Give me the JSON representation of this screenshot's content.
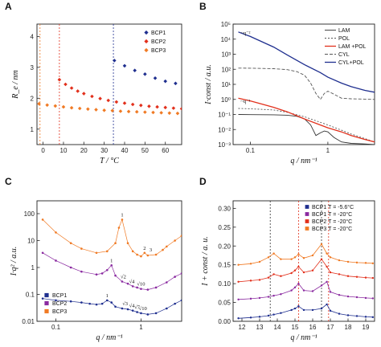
{
  "colors": {
    "bcp1": "#1f2f8f",
    "bcp2": "#e2301c",
    "bcp3": "#f07a24",
    "bcp2_purple": "#8a2aa0",
    "axis": "#222222"
  },
  "panels": [
    {
      "letter": "A",
      "ylabel": "R_e / nm",
      "xlabel": "T / °C",
      "xticks": [
        "0",
        "10",
        "20",
        "30",
        "40",
        "50",
        "60"
      ],
      "yticks": [
        "1",
        "2",
        "3",
        "4"
      ],
      "legend": [
        "BCP1",
        "BCP2",
        "BCP3"
      ],
      "markers": [
        "diamond",
        "diamond",
        "diamond"
      ]
    },
    {
      "letter": "B",
      "ylabel": "I·const / a.u.",
      "xlabel": "q / nm⁻¹",
      "xticks": [
        "0.1",
        "1"
      ],
      "yticks": [
        "10⁻³",
        "10⁻²",
        "10⁻¹",
        "10⁰",
        "10¹",
        "10²",
        "10³",
        "10⁴",
        "10⁵"
      ],
      "legend": [
        "LAM",
        "POL",
        "LAM +POL",
        "CYL",
        "CYL+POL"
      ],
      "annotations": [
        "~q⁻²",
        "~q⁻¹"
      ]
    },
    {
      "letter": "C",
      "ylabel": "I·q² / a.u.",
      "xlabel": "q / nm⁻¹",
      "xticks": [
        "0.1",
        "1"
      ],
      "yticks": [
        "0.01",
        "0.1",
        "1",
        "10",
        "100"
      ],
      "legend": [
        "BCP1",
        "BCP2",
        "BCP3"
      ],
      "peak_labels_bcp3": [
        "1",
        "2",
        "3"
      ],
      "peak_labels_bcp2": [
        "1",
        "√2",
        "√4",
        "√10"
      ],
      "peak_labels_bcp1": [
        "1",
        "√3",
        "√4",
        "√7",
        "√10"
      ]
    },
    {
      "letter": "D",
      "ylabel": "I + const / a. u.",
      "xlabel": "q / nm⁻¹",
      "xticks": [
        "12",
        "13",
        "14",
        "15",
        "16",
        "17",
        "18",
        "19"
      ],
      "yticks": [
        "0.00",
        "0.05",
        "0.10",
        "0.15",
        "0.20",
        "0.25",
        "0.30"
      ],
      "legend": [
        "BCP1 T = -5.6°C",
        "BCP1 T = -20°C",
        "BCP2 T = -20°C",
        "BCP3 T = -20°C"
      ]
    }
  ],
  "chart_data": [
    {
      "type": "scatter",
      "xlim": [
        -3,
        68
      ],
      "ylim": [
        0.5,
        4.4
      ],
      "series": [
        {
          "name": "BCP1",
          "x": [
            35,
            40,
            45,
            50,
            55,
            60,
            65
          ],
          "y": [
            3.22,
            3.05,
            2.9,
            2.78,
            2.65,
            2.55,
            2.48
          ]
        },
        {
          "name": "BCP2",
          "x": [
            8,
            11,
            14,
            17,
            20,
            24,
            28,
            32,
            36,
            40,
            44,
            48,
            52,
            56,
            60,
            64,
            68
          ],
          "y": [
            2.6,
            2.45,
            2.33,
            2.23,
            2.15,
            2.06,
            1.99,
            1.93,
            1.88,
            1.84,
            1.8,
            1.77,
            1.74,
            1.72,
            1.7,
            1.68,
            1.66
          ]
        },
        {
          "name": "BCP3",
          "x": [
            -2,
            2,
            6,
            10,
            14,
            18,
            22,
            26,
            30,
            34,
            38,
            42,
            46,
            50,
            54,
            58,
            62,
            66
          ],
          "y": [
            1.82,
            1.78,
            1.75,
            1.72,
            1.69,
            1.67,
            1.65,
            1.63,
            1.61,
            1.6,
            1.58,
            1.57,
            1.56,
            1.55,
            1.54,
            1.53,
            1.52,
            1.51
          ]
        }
      ],
      "vlines": [
        -1.5,
        8,
        34.5
      ]
    },
    {
      "type": "line",
      "xscale": "log",
      "yscale": "log",
      "xlim": [
        0.06,
        4
      ],
      "ylim": [
        0.001,
        100000
      ],
      "series": [
        {
          "name": "LAM",
          "x": [
            0.07,
            0.1,
            0.2,
            0.3,
            0.4,
            0.5,
            0.6,
            0.7,
            0.8,
            0.9,
            1.0,
            1.2,
            1.5,
            2.0,
            3.0,
            4.0
          ],
          "y": [
            0.1,
            0.098,
            0.095,
            0.09,
            0.075,
            0.05,
            0.02,
            0.004,
            0.006,
            0.008,
            0.007,
            0.003,
            0.0015,
            0.0012,
            0.0011,
            0.001
          ]
        },
        {
          "name": "POL",
          "x": [
            0.07,
            0.1,
            0.2,
            0.3,
            0.5,
            0.8,
            1.0,
            1.5,
            2.0,
            3.0,
            4.0
          ],
          "y": [
            0.25,
            0.24,
            0.2,
            0.14,
            0.07,
            0.03,
            0.02,
            0.009,
            0.005,
            0.0025,
            0.0015
          ]
        },
        {
          "name": "LAM +POL",
          "x": [
            0.07,
            0.1,
            0.2,
            0.3,
            0.5,
            0.8,
            1.0,
            1.5,
            2.0,
            3.0,
            4.0
          ],
          "y": [
            1.2,
            0.8,
            0.3,
            0.15,
            0.05,
            0.02,
            0.013,
            0.007,
            0.004,
            0.0022,
            0.0015
          ]
        },
        {
          "name": "CYL",
          "x": [
            0.07,
            0.1,
            0.2,
            0.3,
            0.4,
            0.5,
            0.6,
            0.7,
            0.8,
            0.9,
            1.0,
            1.2,
            1.5,
            2.0,
            3.0,
            4.0
          ],
          "y": [
            120,
            118,
            110,
            95,
            70,
            40,
            12,
            2.5,
            1.0,
            2.5,
            3.5,
            2.2,
            1.2,
            1.1,
            1.05,
            1.0
          ]
        },
        {
          "name": "CYL+POL",
          "x": [
            0.07,
            0.1,
            0.2,
            0.3,
            0.5,
            0.8,
            1.0,
            1.5,
            2.0,
            3.0,
            4.0
          ],
          "y": [
            30000,
            15000,
            3000,
            900,
            200,
            60,
            30,
            12,
            7,
            4,
            3
          ]
        }
      ]
    },
    {
      "type": "scatter",
      "xscale": "log",
      "yscale": "log",
      "xlim": [
        0.06,
        3
      ],
      "ylim": [
        0.01,
        300
      ],
      "series": [
        {
          "name": "BCP1",
          "x": [
            0.07,
            0.1,
            0.15,
            0.2,
            0.25,
            0.3,
            0.35,
            0.4,
            0.45,
            0.5,
            0.6,
            0.7,
            0.8,
            0.9,
            1.0,
            1.2,
            1.5,
            2.0,
            2.5,
            3.0
          ],
          "y": [
            0.07,
            0.06,
            0.055,
            0.05,
            0.045,
            0.042,
            0.045,
            0.06,
            0.05,
            0.035,
            0.03,
            0.028,
            0.025,
            0.022,
            0.02,
            0.018,
            0.02,
            0.03,
            0.045,
            0.06
          ]
        },
        {
          "name": "BCP2",
          "x": [
            0.07,
            0.1,
            0.15,
            0.2,
            0.3,
            0.35,
            0.4,
            0.45,
            0.5,
            0.6,
            0.7,
            0.8,
            0.9,
            1.0,
            1.2,
            1.5,
            2.0,
            2.5,
            3.0
          ],
          "y": [
            3.5,
            1.8,
            1.0,
            0.7,
            0.55,
            0.6,
            0.8,
            1.2,
            0.5,
            0.3,
            0.25,
            0.2,
            0.18,
            0.16,
            0.15,
            0.18,
            0.28,
            0.45,
            0.6
          ]
        },
        {
          "name": "BCP3",
          "x": [
            0.07,
            0.1,
            0.15,
            0.2,
            0.3,
            0.4,
            0.5,
            0.55,
            0.6,
            0.7,
            0.8,
            0.9,
            1.0,
            1.1,
            1.2,
            1.5,
            1.8,
            2.0,
            2.5,
            3.0
          ],
          "y": [
            60,
            20,
            8,
            5,
            3.5,
            4,
            8,
            30,
            60,
            8,
            4,
            3,
            2.6,
            3.5,
            2.8,
            3.0,
            4.5,
            6,
            10,
            15
          ]
        }
      ]
    },
    {
      "type": "scatter",
      "xlim": [
        11.5,
        19.5
      ],
      "ylim": [
        0.0,
        0.32
      ],
      "series": [
        {
          "name": "BCP1 T = -5.6°C",
          "x": [
            11.8,
            12.5,
            13.0,
            13.5,
            13.8,
            14.2,
            14.8,
            15.0,
            15.2,
            15.5,
            16.0,
            16.5,
            16.8,
            17.0,
            17.5,
            18.0,
            18.5,
            19.0,
            19.4
          ],
          "y": [
            0.008,
            0.01,
            0.012,
            0.015,
            0.018,
            0.022,
            0.03,
            0.034,
            0.04,
            0.03,
            0.03,
            0.034,
            0.045,
            0.028,
            0.02,
            0.016,
            0.014,
            0.012,
            0.011
          ]
        },
        {
          "name": "BCP1 T = -20°C",
          "x": [
            11.8,
            12.5,
            13.0,
            13.5,
            13.8,
            14.2,
            14.8,
            15.0,
            15.2,
            15.5,
            16.0,
            16.5,
            16.8,
            17.0,
            17.5,
            18.0,
            18.5,
            19.0,
            19.4
          ],
          "y": [
            0.058,
            0.06,
            0.062,
            0.065,
            0.068,
            0.072,
            0.082,
            0.09,
            0.1,
            0.082,
            0.08,
            0.095,
            0.105,
            0.078,
            0.07,
            0.066,
            0.064,
            0.062,
            0.061
          ]
        },
        {
          "name": "BCP2 T = -20°C",
          "x": [
            11.8,
            12.5,
            13.0,
            13.5,
            13.8,
            14.2,
            14.8,
            15.0,
            15.2,
            15.5,
            16.0,
            16.5,
            16.8,
            17.0,
            17.5,
            18.0,
            18.5,
            19.0,
            19.4
          ],
          "y": [
            0.105,
            0.108,
            0.11,
            0.116,
            0.125,
            0.12,
            0.128,
            0.135,
            0.145,
            0.13,
            0.135,
            0.165,
            0.145,
            0.13,
            0.125,
            0.12,
            0.118,
            0.116,
            0.115
          ]
        },
        {
          "name": "BCP3 T = -20°C",
          "x": [
            11.8,
            12.5,
            13.0,
            13.5,
            13.8,
            14.2,
            14.8,
            15.0,
            15.2,
            15.5,
            16.0,
            16.5,
            16.8,
            17.0,
            17.5,
            18.0,
            18.5,
            19.0,
            19.4
          ],
          "y": [
            0.15,
            0.153,
            0.158,
            0.17,
            0.18,
            0.165,
            0.165,
            0.17,
            0.178,
            0.168,
            0.175,
            0.205,
            0.18,
            0.17,
            0.162,
            0.158,
            0.156,
            0.155,
            0.154
          ]
        }
      ],
      "vlines": [
        13.6,
        15.2,
        16.5,
        16.9
      ]
    }
  ]
}
